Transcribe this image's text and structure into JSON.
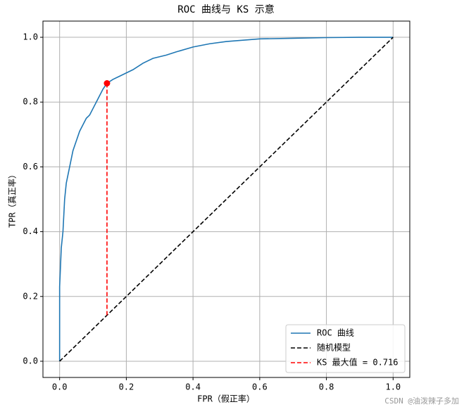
{
  "chart_data": {
    "type": "line",
    "title": "ROC 曲线与 KS 示意",
    "x_label": "FPR（假正率）",
    "y_label": "TPR（真正率）",
    "xlim": [
      -0.05,
      1.05
    ],
    "ylim": [
      -0.05,
      1.05
    ],
    "xticks": [
      {
        "value": 0,
        "label": "0.0"
      },
      {
        "value": 0.2,
        "label": "0.2"
      },
      {
        "value": 0.4,
        "label": "0.4"
      },
      {
        "value": 0.6,
        "label": "0.6"
      },
      {
        "value": 0.8,
        "label": "0.8"
      },
      {
        "value": 1,
        "label": "1.0"
      }
    ],
    "yticks": [
      {
        "value": 0,
        "label": "0.0"
      },
      {
        "value": 0.2,
        "label": "0.2"
      },
      {
        "value": 0.4,
        "label": "0.4"
      },
      {
        "value": 0.6,
        "label": "0.6"
      },
      {
        "value": 0.8,
        "label": "0.8"
      },
      {
        "value": 1,
        "label": "1.0"
      }
    ],
    "grid": true,
    "legend": "lower right",
    "series": [
      {
        "name": "ROC 曲线",
        "color": "#1f77b4",
        "linestyle": "solid",
        "x": [
          0,
          0,
          0.005,
          0.01,
          0.015,
          0.02,
          0.03,
          0.04,
          0.05,
          0.06,
          0.07,
          0.08,
          0.09,
          0.1,
          0.11,
          0.12,
          0.13,
          0.142,
          0.16,
          0.18,
          0.2,
          0.22,
          0.25,
          0.28,
          0.32,
          0.35,
          0.4,
          0.45,
          0.5,
          0.6,
          0.7,
          0.8,
          0.9,
          1.0
        ],
        "values": [
          0,
          0.23,
          0.35,
          0.4,
          0.5,
          0.55,
          0.6,
          0.65,
          0.68,
          0.71,
          0.73,
          0.75,
          0.76,
          0.78,
          0.8,
          0.82,
          0.84,
          0.858,
          0.87,
          0.88,
          0.89,
          0.9,
          0.92,
          0.935,
          0.945,
          0.955,
          0.97,
          0.98,
          0.987,
          0.995,
          0.997,
          0.999,
          1.0,
          1.0
        ]
      },
      {
        "name": "随机模型",
        "color": "#000000",
        "linestyle": "dashed",
        "x": [
          0,
          1
        ],
        "values": [
          0,
          1
        ]
      },
      {
        "name": "KS 最大值 = 0.716",
        "color": "#ff0000",
        "linestyle": "dashed",
        "x": [
          0.142,
          0.142
        ],
        "values": [
          0.142,
          0.858
        ]
      }
    ],
    "marker": {
      "x": 0.142,
      "y": 0.858,
      "color": "#ff0000"
    },
    "watermark": "CSDN @油泼辣子多加"
  }
}
